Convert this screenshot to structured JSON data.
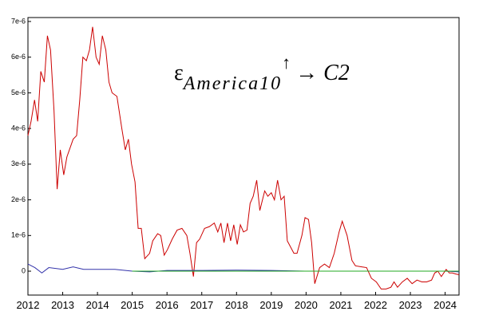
{
  "chart_data": {
    "type": "line",
    "annotation": {
      "base": "ε",
      "subscript": "America10",
      "superscript": "↑",
      "tail": "→ C2"
    },
    "xlim": [
      2012,
      2024.4
    ],
    "xticks": [
      2012,
      2013,
      2014,
      2015,
      2016,
      2017,
      2018,
      2019,
      2020,
      2021,
      2022,
      2023,
      2024
    ],
    "ylim": [
      -6.7e-07,
      7.11e-06
    ],
    "yticks": [
      0,
      {
        "value": 1e-06,
        "label": "1e-6"
      },
      {
        "value": 2e-06,
        "label": "2e-6"
      },
      {
        "value": 3e-06,
        "label": "3e-6"
      },
      {
        "value": 4e-06,
        "label": "4e-6"
      },
      {
        "value": 5e-06,
        "label": "5e-6"
      },
      {
        "value": 6e-06,
        "label": "6e-6"
      },
      {
        "value": 7e-06,
        "label": "7e-6"
      }
    ],
    "series": [
      {
        "color": "#cc0000",
        "x": [
          2012.0,
          2012.09,
          2012.19,
          2012.28,
          2012.37,
          2012.47,
          2012.56,
          2012.65,
          2012.75,
          2012.84,
          2012.93,
          2013.03,
          2013.12,
          2013.3,
          2013.4,
          2013.49,
          2013.58,
          2013.68,
          2013.77,
          2013.86,
          2013.96,
          2014.05,
          2014.14,
          2014.24,
          2014.33,
          2014.42,
          2014.56,
          2014.7,
          2014.8,
          2014.89,
          2014.98,
          2015.08,
          2015.17,
          2015.26,
          2015.36,
          2015.5,
          2015.59,
          2015.73,
          2015.82,
          2015.92,
          2016.01,
          2016.15,
          2016.29,
          2016.43,
          2016.57,
          2016.66,
          2016.76,
          2016.85,
          2016.94,
          2017.08,
          2017.22,
          2017.36,
          2017.46,
          2017.55,
          2017.64,
          2017.74,
          2017.83,
          2017.92,
          2018.02,
          2018.11,
          2018.2,
          2018.3,
          2018.39,
          2018.48,
          2018.58,
          2018.67,
          2018.81,
          2018.9,
          2019.0,
          2019.09,
          2019.18,
          2019.28,
          2019.37,
          2019.46,
          2019.65,
          2019.74,
          2019.88,
          2019.97,
          2020.07,
          2020.16,
          2020.25,
          2020.39,
          2020.53,
          2020.67,
          2020.81,
          2020.95,
          2021.04,
          2021.18,
          2021.32,
          2021.42,
          2021.6,
          2021.74,
          2021.88,
          2022.02,
          2022.16,
          2022.3,
          2022.44,
          2022.53,
          2022.63,
          2022.77,
          2022.91,
          2023.05,
          2023.19,
          2023.33,
          2023.47,
          2023.61,
          2023.7,
          2023.79,
          2023.89,
          2024.03,
          2024.12,
          2024.21,
          2024.31,
          2024.4
        ],
        "values": [
          3.8e-06,
          4.2e-06,
          4.8e-06,
          4.2e-06,
          5.6e-06,
          5.3e-06,
          6.6e-06,
          6.2e-06,
          4.5e-06,
          2.3e-06,
          3.4e-06,
          2.7e-06,
          3.2e-06,
          3.7e-06,
          3.8e-06,
          4.8e-06,
          6e-06,
          5.9e-06,
          6.2e-06,
          6.85e-06,
          6e-06,
          5.8e-06,
          6.6e-06,
          6.2e-06,
          5.3e-06,
          5e-06,
          4.9e-06,
          4e-06,
          3.4e-06,
          3.7e-06,
          3e-06,
          2.5e-06,
          1.2e-06,
          1.2e-06,
          3.5e-07,
          5e-07,
          8.5e-07,
          1.05e-06,
          1e-06,
          4.5e-07,
          6e-07,
          9e-07,
          1.15e-06,
          1.2e-06,
          1e-06,
          5e-07,
          -1.5e-07,
          8e-07,
          9e-07,
          1.2e-06,
          1.25e-06,
          1.35e-06,
          1.1e-06,
          1.35e-06,
          8e-07,
          1.35e-06,
          8.5e-07,
          1.3e-06,
          7.5e-07,
          1.3e-06,
          1.1e-06,
          1.15e-06,
          1.9e-06,
          2.1e-06,
          2.55e-06,
          1.7e-06,
          2.25e-06,
          2.1e-06,
          2.2e-06,
          2e-06,
          2.55e-06,
          2e-06,
          2.1e-06,
          8.5e-07,
          5e-07,
          5e-07,
          1e-06,
          1.5e-06,
          1.45e-06,
          8e-07,
          -3.5e-07,
          1e-07,
          2e-07,
          1e-07,
          5e-07,
          1.1e-06,
          1.4e-06,
          1e-06,
          3e-07,
          1.5e-07,
          1.2e-07,
          1e-07,
          -2e-07,
          -3e-07,
          -5e-07,
          -5e-07,
          -4.5e-07,
          -3e-07,
          -4.5e-07,
          -3e-07,
          -2e-07,
          -3.5e-07,
          -2.5e-07,
          -3e-07,
          -3e-07,
          -2.5e-07,
          -5e-08,
          0,
          -1.5e-07,
          5e-08,
          -5e-08,
          -5e-08,
          -8e-08,
          -1e-07
        ]
      },
      {
        "color": "#3333aa",
        "x": [
          2012,
          2012.2,
          2012.4,
          2012.6,
          2013,
          2013.3,
          2013.6,
          2014,
          2014.5,
          2015,
          2015.5,
          2016,
          2017,
          2018,
          2019,
          2020,
          2021,
          2022,
          2023,
          2024,
          2024.4
        ],
        "values": [
          2e-07,
          1e-07,
          -5e-08,
          1e-07,
          5e-08,
          1.2e-07,
          5e-08,
          5e-08,
          5e-08,
          0,
          -2e-08,
          2e-08,
          2e-08,
          3e-08,
          2e-08,
          0,
          0,
          0,
          0,
          0,
          -2e-08
        ]
      },
      {
        "color": "#22aa22",
        "x": [
          2015,
          2024.4
        ],
        "values": [
          0,
          0
        ]
      }
    ]
  }
}
